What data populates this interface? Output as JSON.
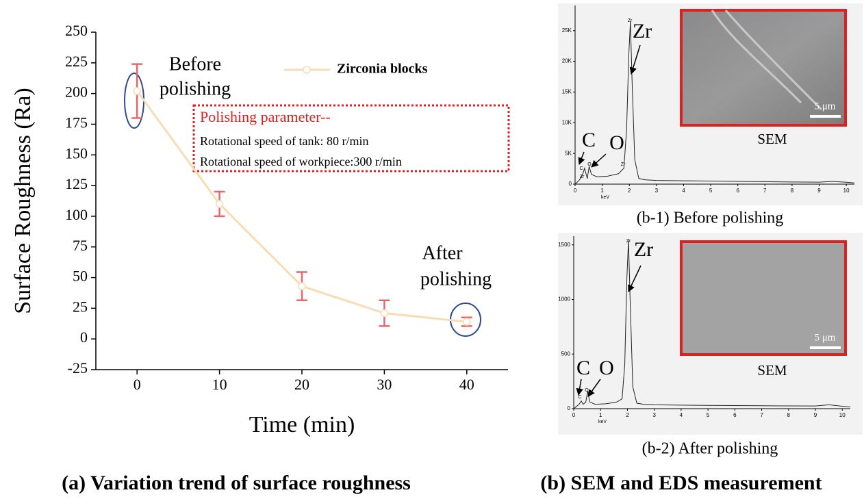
{
  "chart_data": [
    {
      "type": "line",
      "y_label": "Surface Roughness (Ra)",
      "x_label": "Time (min)",
      "x": [
        0,
        10,
        20,
        30,
        40
      ],
      "series": [
        {
          "name": "Zirconia blocks",
          "color": "#f8dcb4",
          "error_color": "#e8676b",
          "values": [
            202,
            110,
            43,
            21,
            14
          ],
          "errors": [
            22,
            10,
            11.5,
            10.5,
            3.5
          ]
        }
      ],
      "xlim": [
        -5,
        45
      ],
      "xticks": [
        0,
        10,
        20,
        30,
        40
      ],
      "ylim": [
        -25,
        250
      ],
      "yticks": [
        -25,
        0,
        25,
        50,
        75,
        100,
        125,
        150,
        175,
        200,
        225,
        250
      ],
      "annotations": [
        [
          "Before",
          "polishing"
        ],
        [
          "After",
          "polishing"
        ]
      ],
      "note": {
        "title": "Polishing parameter--",
        "lines": [
          "Rotational speed of tank: 80 r/min",
          "Rotational speed of workpiece:300 r/min"
        ]
      },
      "caption": "(a) Variation trend of surface roughness"
    },
    {
      "type": "line",
      "x_label": "keV",
      "x": [
        0,
        0.1,
        0.2,
        0.28,
        0.35,
        0.45,
        0.52,
        0.6,
        0.8,
        1.2,
        1.6,
        1.8,
        1.9,
        1.98,
        2.04,
        2.1,
        2.2,
        2.35,
        2.6,
        3,
        4,
        5,
        6,
        7,
        8,
        9,
        9.5,
        10,
        10.3
      ],
      "series": [
        {
          "color": "#222222",
          "values": [
            0,
            400,
            900,
            1600,
            2600,
            900,
            2900,
            1600,
            1200,
            1300,
            1700,
            2600,
            9000,
            21000,
            26500,
            17000,
            4000,
            900,
            700,
            600,
            550,
            500,
            450,
            400,
            350,
            320,
            450,
            300,
            200
          ]
        }
      ],
      "xlim": [
        0,
        10.3
      ],
      "xticks": [
        0,
        1,
        2,
        3,
        4,
        5,
        6,
        7,
        8,
        9,
        10
      ],
      "ylim": [
        0,
        29100
      ],
      "yticks": [
        0,
        {
          "value": 5000,
          "label": "5K"
        },
        {
          "value": 10000,
          "label": "10K"
        },
        {
          "value": 15000,
          "label": "15K"
        },
        {
          "value": 20000,
          "label": "20K"
        },
        {
          "value": 25000,
          "label": "25K"
        }
      ],
      "peak_labels": [
        "Zr",
        "C",
        "O",
        "Zr",
        "Zr"
      ],
      "element_labels": [
        "Zr",
        "C",
        "O"
      ],
      "inset": {
        "label": "SEM",
        "scale": "5 μm"
      },
      "caption": "(b-1) Before polishing"
    },
    {
      "type": "line",
      "x_label": "keV",
      "x": [
        0,
        0.1,
        0.2,
        0.28,
        0.35,
        0.45,
        0.52,
        0.6,
        0.8,
        1.2,
        1.6,
        1.8,
        1.9,
        1.98,
        2.04,
        2.1,
        2.2,
        2.35,
        2.6,
        3,
        4,
        5,
        6,
        7,
        8,
        9,
        9.5,
        10,
        10.3
      ],
      "series": [
        {
          "color": "#222222",
          "values": [
            0,
            20,
            40,
            70,
            40,
            60,
            160,
            60,
            40,
            45,
            60,
            90,
            400,
            1200,
            1540,
            1000,
            200,
            50,
            40,
            35,
            32,
            30,
            28,
            27,
            25,
            24,
            35,
            22,
            15
          ]
        }
      ],
      "xlim": [
        0,
        10.3
      ],
      "xticks": [
        0,
        1,
        2,
        3,
        4,
        5,
        6,
        7,
        8,
        9,
        10
      ],
      "ylim": [
        0,
        1580
      ],
      "yticks": [
        0,
        500,
        1000,
        1500
      ],
      "peak_labels": [
        "Zr",
        "C",
        "O"
      ],
      "element_labels": [
        "Zr",
        "C",
        "O"
      ],
      "inset": {
        "label": "SEM",
        "scale": "5 μm"
      },
      "caption": "(b-2) After polishing"
    }
  ],
  "caption": "(b) SEM and EDS measurement"
}
